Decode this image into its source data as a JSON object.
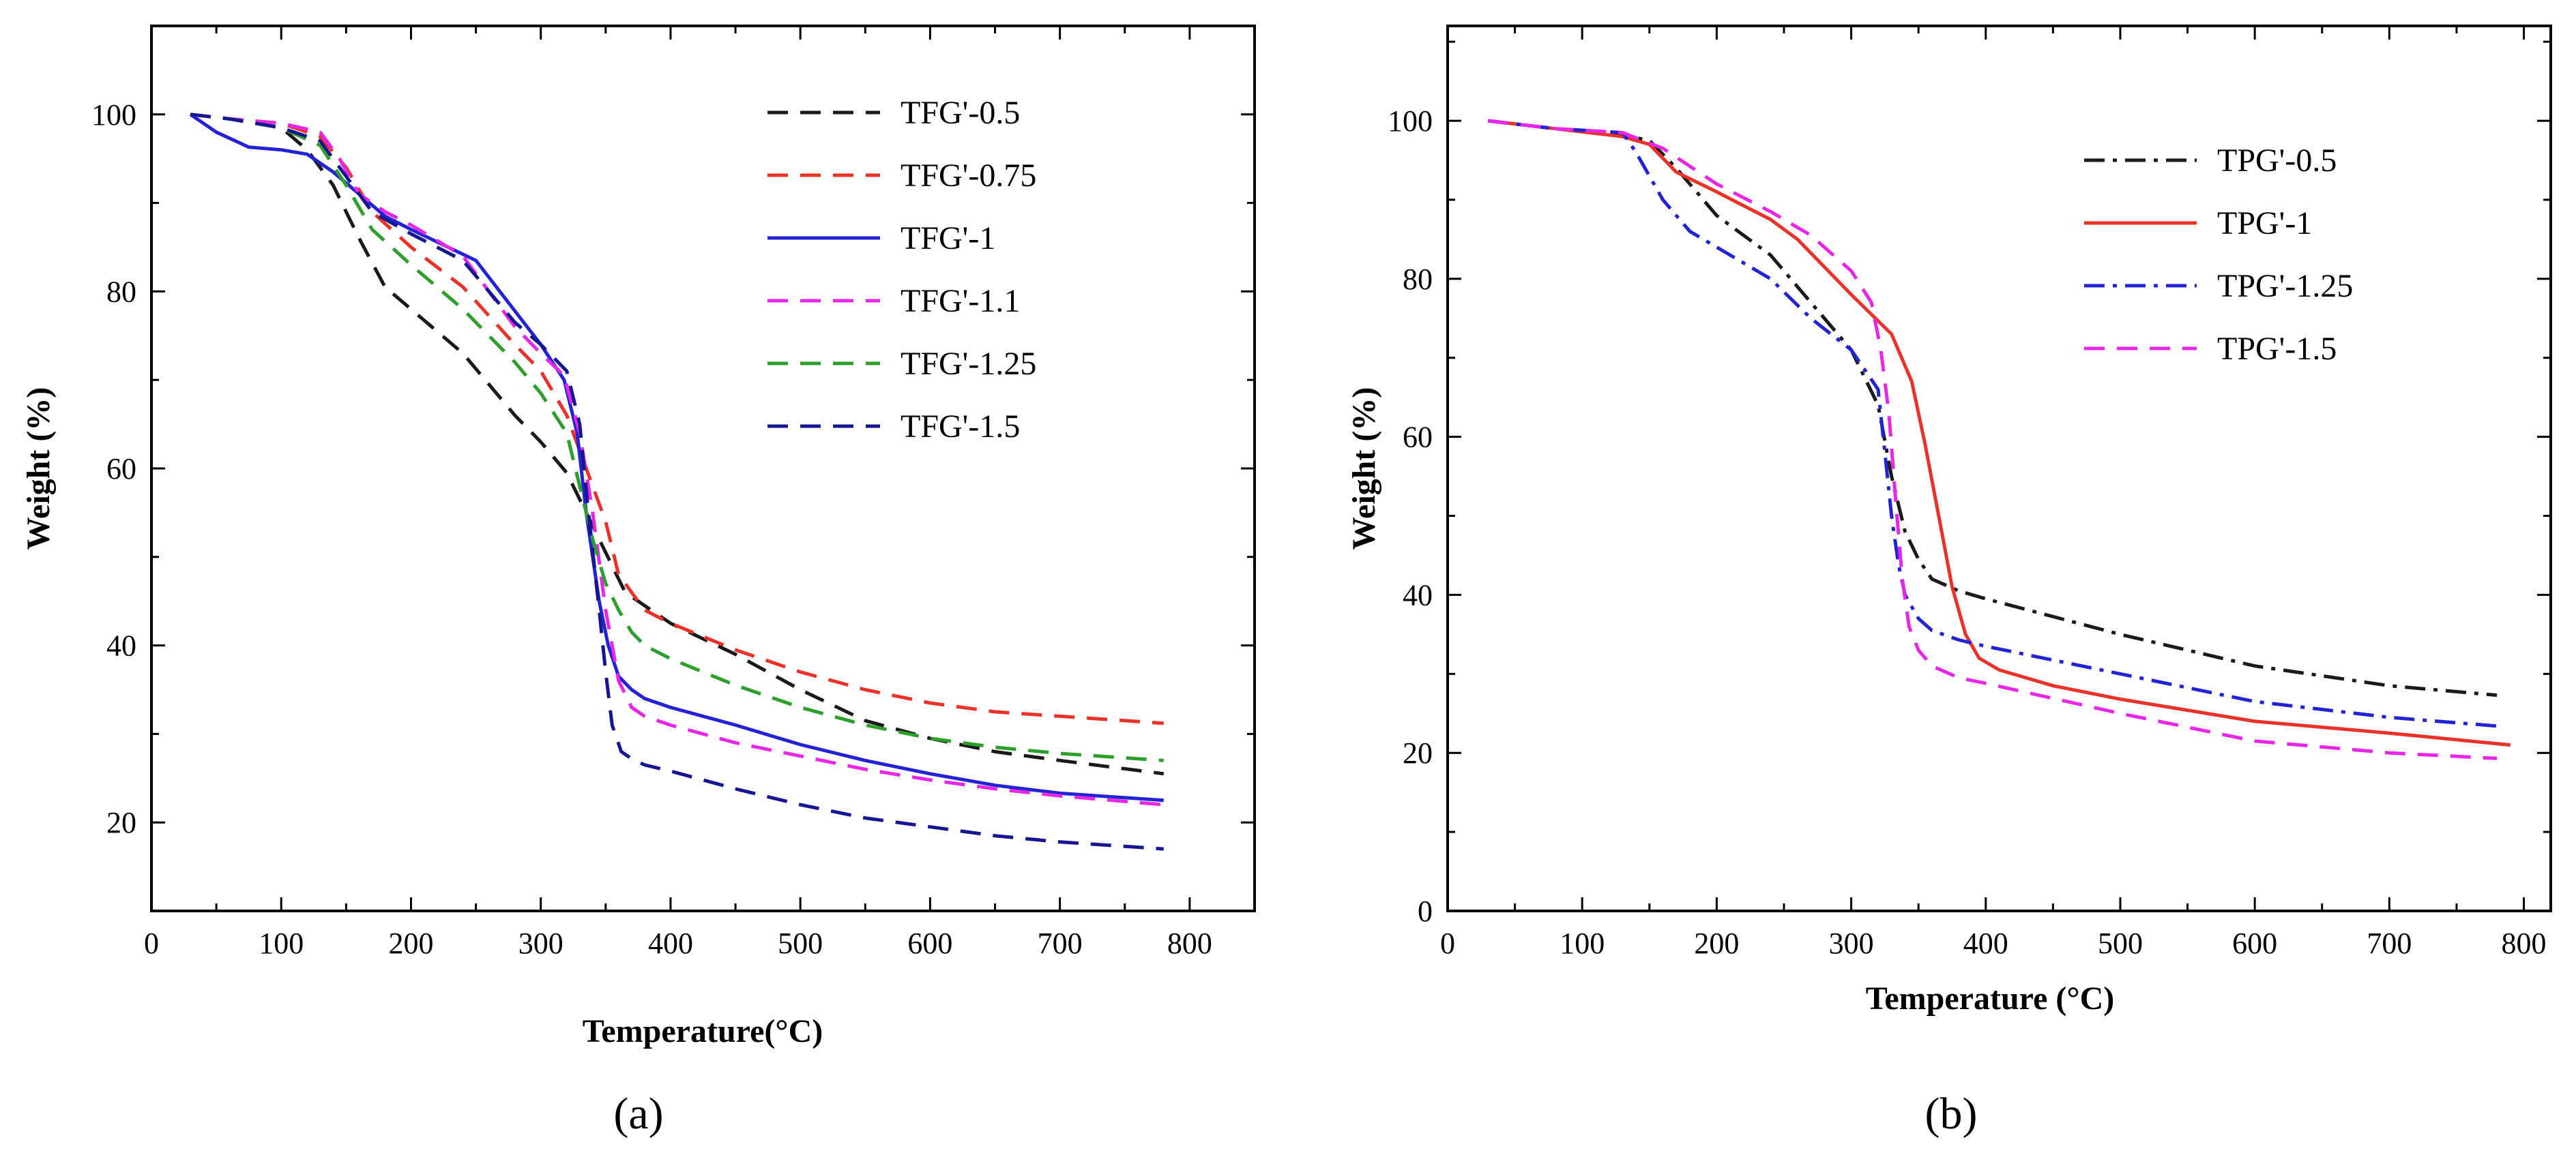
{
  "chart_data": [
    {
      "type": "line",
      "panel_label": "(a)",
      "xlabel": "Temperature(°C)",
      "ylabel": "Weight (%)",
      "xlim": [
        0,
        850
      ],
      "ylim": [
        10,
        110
      ],
      "xticks": [
        0,
        100,
        200,
        300,
        400,
        500,
        600,
        700,
        800
      ],
      "yticks": [
        20,
        40,
        60,
        80,
        100
      ],
      "grid": false,
      "legend_position": "top-right",
      "series": [
        {
          "name": "TFG'-0.5",
          "color": "#1a1a1a",
          "dash": "dashed",
          "x": [
            30,
            60,
            100,
            120,
            140,
            160,
            180,
            200,
            240,
            280,
            300,
            320,
            335,
            345,
            355,
            365,
            380,
            400,
            450,
            500,
            550,
            600,
            650,
            700,
            780
          ],
          "y": [
            100,
            99.5,
            98.5,
            96,
            92,
            86,
            80.5,
            78,
            73,
            66,
            63,
            59.5,
            55,
            52,
            49,
            46,
            44.5,
            42.5,
            39,
            35,
            31.5,
            29.5,
            28,
            27,
            25.5
          ]
        },
        {
          "name": "TFG'-0.75",
          "color": "#e8322a",
          "dash": "dashed",
          "x": [
            30,
            60,
            100,
            130,
            150,
            170,
            200,
            240,
            280,
            300,
            320,
            330,
            340,
            350,
            360,
            380,
            400,
            450,
            500,
            550,
            600,
            650,
            700,
            780
          ],
          "y": [
            100,
            99.5,
            99,
            97.5,
            94,
            89,
            85,
            80.5,
            74,
            71,
            66,
            62,
            58,
            54,
            48,
            44,
            42.5,
            39.5,
            37,
            35,
            33.5,
            32.5,
            32,
            31.2
          ]
        },
        {
          "name": "TFG'-1",
          "color": "#2323d4",
          "dash": "solid",
          "x": [
            30,
            50,
            75,
            100,
            120,
            140,
            160,
            180,
            200,
            250,
            300,
            318,
            328,
            335,
            345,
            352,
            360,
            370,
            380,
            400,
            450,
            500,
            550,
            600,
            650,
            700,
            780
          ],
          "y": [
            100,
            98,
            96.3,
            96,
            95.5,
            93.5,
            91,
            88.5,
            87,
            83.5,
            74,
            70,
            64,
            55,
            45,
            40,
            36.5,
            35,
            34,
            33,
            31,
            28.8,
            27,
            25.5,
            24.2,
            23.3,
            22.5
          ]
        },
        {
          "name": "TFG'-1.1",
          "color": "#e628e6",
          "dash": "dashed",
          "x": [
            30,
            60,
            100,
            130,
            145,
            160,
            180,
            200,
            240,
            280,
            300,
            318,
            330,
            340,
            350,
            360,
            370,
            380,
            400,
            450,
            500,
            550,
            600,
            650,
            700,
            780
          ],
          "y": [
            100,
            99.5,
            99,
            98,
            95,
            91,
            89,
            87.5,
            84,
            76,
            73,
            70.5,
            64,
            55,
            44,
            36,
            33,
            32,
            31,
            29,
            27.5,
            26,
            24.8,
            23.8,
            23,
            22
          ]
        },
        {
          "name": "TFG'-1.25",
          "color": "#2e9e2e",
          "dash": "dashed",
          "x": [
            30,
            60,
            100,
            130,
            150,
            170,
            200,
            240,
            280,
            300,
            320,
            330,
            340,
            350,
            360,
            370,
            380,
            400,
            450,
            500,
            550,
            600,
            650,
            700,
            780
          ],
          "y": [
            100,
            99.5,
            98.5,
            96.5,
            92,
            87,
            83,
            78,
            72,
            68.5,
            64,
            58,
            52,
            47,
            44,
            41.5,
            40,
            38.5,
            35.5,
            33,
            31,
            29.5,
            28.5,
            27.8,
            27
          ]
        },
        {
          "name": "TFG'-1.5",
          "color": "#161690",
          "dash": "dashed",
          "x": [
            30,
            60,
            100,
            130,
            150,
            170,
            200,
            240,
            280,
            300,
            320,
            330,
            336,
            345,
            350,
            355,
            362,
            370,
            380,
            400,
            450,
            500,
            550,
            600,
            650,
            700,
            780
          ],
          "y": [
            100,
            99.5,
            98.5,
            97,
            93,
            89,
            86.5,
            83.5,
            76.5,
            74,
            71,
            65,
            56,
            44,
            37,
            31,
            28,
            27.2,
            26.5,
            25.8,
            23.8,
            22,
            20.5,
            19.5,
            18.5,
            17.8,
            17
          ]
        }
      ]
    },
    {
      "type": "line",
      "panel_label": "(b)",
      "xlabel": "Temperature (°C)",
      "ylabel": "Weight (%)",
      "xlim": [
        0,
        820
      ],
      "ylim": [
        0,
        112
      ],
      "xticks": [
        0,
        100,
        200,
        300,
        400,
        500,
        600,
        700,
        800
      ],
      "yticks": [
        0,
        20,
        40,
        60,
        80,
        100
      ],
      "grid": false,
      "legend_position": "top-right",
      "series": [
        {
          "name": "TPG'-0.5",
          "color": "#1a1a1a",
          "dash": "dashdot",
          "x": [
            30,
            80,
            120,
            150,
            170,
            200,
            240,
            270,
            300,
            320,
            330,
            340,
            350,
            360,
            380,
            400,
            500,
            600,
            700,
            780
          ],
          "y": [
            100,
            99,
            98.5,
            97.5,
            94,
            88,
            83,
            77,
            71,
            64,
            55,
            48,
            44.5,
            42,
            40.5,
            39.5,
            35,
            31,
            28.5,
            27.3
          ]
        },
        {
          "name": "TPG'-1",
          "color": "#e8322a",
          "dash": "solid",
          "x": [
            30,
            80,
            130,
            150,
            170,
            200,
            240,
            260,
            300,
            330,
            345,
            355,
            365,
            375,
            385,
            395,
            410,
            450,
            500,
            600,
            700,
            790
          ],
          "y": [
            100,
            99,
            98,
            97,
            93.5,
            91,
            87.5,
            85,
            78,
            73,
            67,
            59,
            50,
            41,
            35,
            32,
            30.5,
            28.5,
            26.8,
            24,
            22.5,
            21
          ]
        },
        {
          "name": "TPG'-1.25",
          "color": "#2323d4",
          "dash": "dashdot",
          "x": [
            30,
            80,
            130,
            140,
            160,
            180,
            200,
            240,
            270,
            300,
            320,
            325,
            330,
            335,
            340,
            345,
            350,
            360,
            380,
            400,
            500,
            600,
            700,
            780
          ],
          "y": [
            100,
            99,
            98.5,
            96,
            90,
            86,
            84,
            80,
            75,
            71,
            66,
            58,
            50,
            44,
            40,
            38.5,
            37,
            35.5,
            34.3,
            33.5,
            30,
            26.5,
            24.5,
            23.4
          ]
        },
        {
          "name": "TPG'-1.5",
          "color": "#e628e6",
          "dash": "dashed",
          "x": [
            30,
            80,
            130,
            160,
            200,
            240,
            270,
            300,
            315,
            322,
            328,
            333,
            338,
            343,
            350,
            360,
            380,
            400,
            500,
            600,
            700,
            780
          ],
          "y": [
            100,
            99,
            98.5,
            96.5,
            92,
            88.5,
            85.5,
            81,
            77,
            71,
            63,
            52,
            42,
            36,
            33,
            31,
            29.5,
            28.8,
            25,
            21.5,
            20,
            19.3
          ]
        }
      ]
    }
  ]
}
